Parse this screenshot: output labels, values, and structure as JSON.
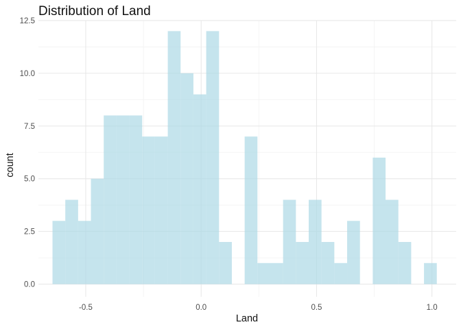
{
  "chart_data": {
    "type": "histogram",
    "title": "Distribution of Land",
    "xlabel": "Land",
    "ylabel": "count",
    "xlim": [
      -0.705,
      1.105
    ],
    "ylim": [
      -0.6,
      12.5
    ],
    "x_ticks": [
      -0.5,
      0.0,
      0.5,
      1.0
    ],
    "x_tick_labels": [
      "-0.5",
      "0.0",
      "0.5",
      "1.0"
    ],
    "y_ticks": [
      0,
      2.5,
      5,
      7.5,
      10,
      12.5
    ],
    "y_tick_labels": [
      "0.0",
      "2.5",
      "5.0",
      "7.5",
      "10.0",
      "12.5"
    ],
    "grid": true,
    "bin_width": 0.0555,
    "bins": [
      {
        "x0": -0.644,
        "x1": -0.5885,
        "count": 3
      },
      {
        "x0": -0.5885,
        "x1": -0.533,
        "count": 4
      },
      {
        "x0": -0.533,
        "x1": -0.4775,
        "count": 3
      },
      {
        "x0": -0.4775,
        "x1": -0.422,
        "count": 5
      },
      {
        "x0": -0.422,
        "x1": -0.3665,
        "count": 8
      },
      {
        "x0": -0.3665,
        "x1": -0.311,
        "count": 8
      },
      {
        "x0": -0.311,
        "x1": -0.2555,
        "count": 8
      },
      {
        "x0": -0.2555,
        "x1": -0.2,
        "count": 7
      },
      {
        "x0": -0.2,
        "x1": -0.1445,
        "count": 7
      },
      {
        "x0": -0.1445,
        "x1": -0.089,
        "count": 12
      },
      {
        "x0": -0.089,
        "x1": -0.0335,
        "count": 10
      },
      {
        "x0": -0.0335,
        "x1": 0.022,
        "count": 9
      },
      {
        "x0": 0.022,
        "x1": 0.0775,
        "count": 12
      },
      {
        "x0": 0.0775,
        "x1": 0.133,
        "count": 2
      },
      {
        "x0": 0.133,
        "x1": 0.1885,
        "count": 0
      },
      {
        "x0": 0.1885,
        "x1": 0.244,
        "count": 7
      },
      {
        "x0": 0.244,
        "x1": 0.2995,
        "count": 1
      },
      {
        "x0": 0.2995,
        "x1": 0.355,
        "count": 1
      },
      {
        "x0": 0.355,
        "x1": 0.4105,
        "count": 4
      },
      {
        "x0": 0.4105,
        "x1": 0.466,
        "count": 2
      },
      {
        "x0": 0.466,
        "x1": 0.5215,
        "count": 4
      },
      {
        "x0": 0.5215,
        "x1": 0.577,
        "count": 2
      },
      {
        "x0": 0.577,
        "x1": 0.6325,
        "count": 1
      },
      {
        "x0": 0.6325,
        "x1": 0.688,
        "count": 3
      },
      {
        "x0": 0.688,
        "x1": 0.7435,
        "count": 0
      },
      {
        "x0": 0.7435,
        "x1": 0.799,
        "count": 6
      },
      {
        "x0": 0.799,
        "x1": 0.8545,
        "count": 4
      },
      {
        "x0": 0.8545,
        "x1": 0.91,
        "count": 2
      },
      {
        "x0": 0.91,
        "x1": 0.9655,
        "count": 0
      },
      {
        "x0": 0.9655,
        "x1": 1.021,
        "count": 1
      }
    ],
    "bar_color": "#add8e6",
    "bar_opacity": 0.7
  }
}
